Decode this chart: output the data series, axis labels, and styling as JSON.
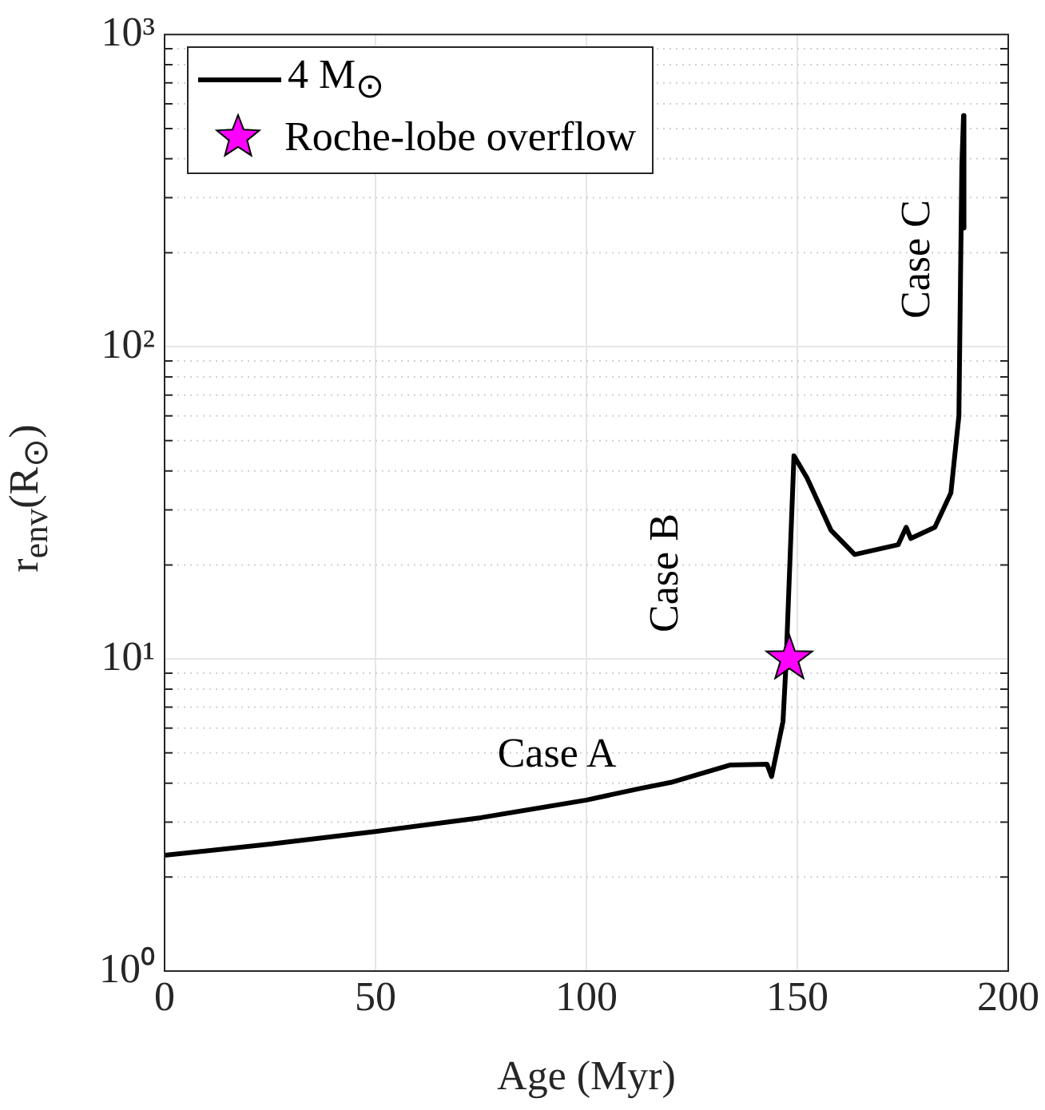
{
  "chart_data": {
    "type": "line",
    "xlabel": "Age (Myr)",
    "ylabel": "r$_{env}$(R$_{⊙}$)",
    "log": "y",
    "grid": true,
    "legend": "top left",
    "xlim": [
      0,
      200
    ],
    "xticks": [
      0,
      50,
      100,
      150,
      200
    ],
    "ylim": [
      1,
      1000
    ],
    "yticks": [
      {
        "value": 1,
        "label": "10⁰"
      },
      {
        "value": 10,
        "label": "10¹"
      },
      {
        "value": 100,
        "label": "10²"
      },
      {
        "value": 1000,
        "label": "10³"
      }
    ],
    "series": [
      {
        "name": "4 M$_{⊙}$",
        "color": "#000000",
        "marker": "none",
        "line_style": "solid",
        "x": [
          0,
          25,
          50,
          75,
          100,
          112.5,
          120,
          134,
          142.8,
          143.9,
          146.6,
          147.3,
          149.2,
          152.3,
          158,
          163.6,
          173.9,
          175.8,
          176.9,
          182.6,
          186.4,
          188.3,
          189,
          189.4,
          189.5
        ],
        "values": [
          2.35,
          2.55,
          2.8,
          3.1,
          3.53,
          3.84,
          4.02,
          4.57,
          4.6,
          4.2,
          6.3,
          9.5,
          44.7,
          38,
          25.8,
          21.6,
          23.2,
          26.4,
          24.3,
          26.4,
          34,
          60,
          380,
          550,
          240
        ]
      },
      {
        "name": "Roche-lobe overflow",
        "type": "scatter",
        "color": "#ff00ff",
        "marker": "star",
        "x": [
          148.1
        ],
        "values": [
          10
        ]
      }
    ],
    "annotations": [
      "Case A",
      "Case B",
      "Case C"
    ]
  }
}
